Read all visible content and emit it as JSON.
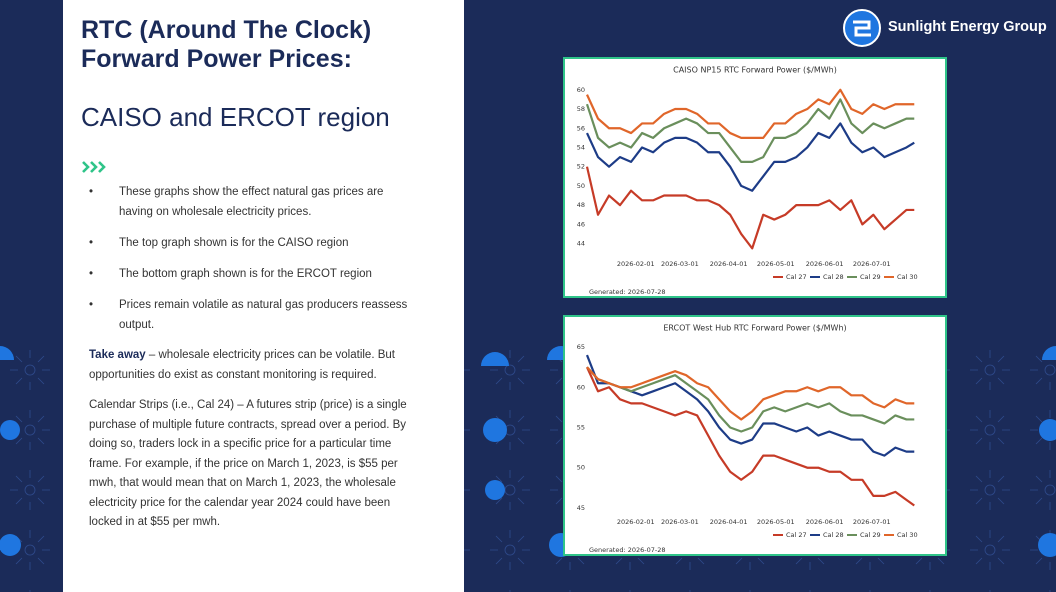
{
  "brand": "Sunlight Energy Group",
  "heading": {
    "title": "RTC (Around The Clock) Forward Power Prices:",
    "subtitle": "CAISO and ERCOT region"
  },
  "bullets": [
    "These graphs show the effect natural gas prices are having on wholesale electricity prices.",
    "The top graph shown is for the CAISO region",
    "The bottom graph shown is for the ERCOT region",
    "Prices remain volatile as natural gas producers reassess output."
  ],
  "take_away": {
    "label": "Take away",
    "text": "– wholesale electricity prices can be volatile. But opportunities do exist as constant monitoring is required."
  },
  "note": "Calendar Strips (i.e., Cal 24) – A futures strip (price) is a single purchase of multiple future contracts, spread over a period. By doing so, traders lock in a specific price for a particular time frame.  For example, if the price on March 1, 2023, is $55 per mwh, that would mean that on March 1, 2023, the wholesale electricity price for the calendar year 2024 could have been locked in at $55 per mwh.",
  "chart_data": [
    {
      "type": "line",
      "title": "CAISO NP15 RTC Forward Power ($/MWh)",
      "footnote": "Generated: 2026-07-28",
      "x": [
        "2026-01-01",
        "2026-01-08",
        "2026-01-15",
        "2026-01-22",
        "2026-01-29",
        "2026-02-05",
        "2026-02-12",
        "2026-02-19",
        "2026-02-26",
        "2026-03-05",
        "2026-03-12",
        "2026-03-19",
        "2026-03-26",
        "2026-04-02",
        "2026-04-09",
        "2026-04-16",
        "2026-04-23",
        "2026-04-30",
        "2026-05-07",
        "2026-05-14",
        "2026-05-21",
        "2026-05-28",
        "2026-06-04",
        "2026-06-11",
        "2026-06-18",
        "2026-06-25",
        "2026-07-02",
        "2026-07-09",
        "2026-07-16",
        "2026-07-23",
        "2026-07-28"
      ],
      "xlim": [
        "2026-01-01",
        "2026-07-31"
      ],
      "xticks": [
        "2026-02-01",
        "2026-03-01",
        "2026-04-01",
        "2026-05-01",
        "2026-06-01",
        "2026-07-01"
      ],
      "ylim": [
        42.5,
        60.5
      ],
      "yticks": [
        44,
        46,
        48,
        50,
        52,
        54,
        56,
        58,
        60
      ],
      "series": [
        {
          "name": "Cal 27",
          "color": "#c63b27",
          "values": [
            52,
            47,
            49,
            48,
            49.5,
            48.5,
            48.5,
            49,
            49,
            49,
            48.5,
            48.5,
            48,
            47,
            45,
            43.5,
            47,
            46.5,
            47,
            48,
            48,
            48,
            48.5,
            47.5,
            48.5,
            46,
            47,
            45.5,
            46.5,
            47.5,
            47.5
          ]
        },
        {
          "name": "Cal 28",
          "color": "#1d3c87",
          "values": [
            55.5,
            53,
            52,
            53,
            52.5,
            54,
            53.5,
            54.5,
            55,
            55,
            54.5,
            53.5,
            53.5,
            52,
            50,
            49.5,
            51,
            52.5,
            52.5,
            53,
            54,
            55.5,
            55,
            56.5,
            54.5,
            53.5,
            54,
            53,
            53.5,
            54,
            54.5
          ]
        },
        {
          "name": "Cal 29",
          "color": "#6a8f5c",
          "values": [
            58.5,
            55,
            54,
            54.5,
            54,
            55.5,
            55,
            56,
            56.5,
            57,
            56.5,
            55.5,
            55.5,
            54,
            52.5,
            52.5,
            53,
            55,
            55,
            55.5,
            56.5,
            58,
            57,
            59,
            56.5,
            55.5,
            56.5,
            56,
            56.5,
            57,
            57
          ]
        },
        {
          "name": "Cal 30",
          "color": "#e0662a",
          "values": [
            59.5,
            57,
            56,
            56,
            55.5,
            56.5,
            56.5,
            57.5,
            58,
            58,
            57.5,
            56.5,
            56.5,
            55.5,
            55,
            55,
            55,
            56.5,
            56.5,
            57.5,
            58,
            59,
            58.5,
            60,
            58,
            57.5,
            58.5,
            58,
            58.5,
            58.5,
            58.5
          ]
        }
      ]
    },
    {
      "type": "line",
      "title": "ERCOT West Hub RTC Forward Power ($/MWh)",
      "footnote": "Generated: 2026-07-28",
      "x": [
        "2026-01-01",
        "2026-01-08",
        "2026-01-15",
        "2026-01-22",
        "2026-01-29",
        "2026-02-05",
        "2026-02-12",
        "2026-02-19",
        "2026-02-26",
        "2026-03-05",
        "2026-03-12",
        "2026-03-19",
        "2026-03-26",
        "2026-04-02",
        "2026-04-09",
        "2026-04-16",
        "2026-04-23",
        "2026-04-30",
        "2026-05-07",
        "2026-05-14",
        "2026-05-21",
        "2026-05-28",
        "2026-06-04",
        "2026-06-11",
        "2026-06-18",
        "2026-06-25",
        "2026-07-02",
        "2026-07-09",
        "2026-07-16",
        "2026-07-23",
        "2026-07-28"
      ],
      "xlim": [
        "2026-01-01",
        "2026-07-31"
      ],
      "xticks": [
        "2026-02-01",
        "2026-03-01",
        "2026-04-01",
        "2026-05-01",
        "2026-06-01",
        "2026-07-01"
      ],
      "ylim": [
        44,
        65.5
      ],
      "yticks": [
        45,
        50,
        55,
        60,
        65
      ],
      "series": [
        {
          "name": "Cal 27",
          "color": "#c63b27",
          "values": [
            62.5,
            59.5,
            60,
            58.5,
            58,
            58,
            57.5,
            57,
            56.5,
            57,
            56.5,
            54,
            51.5,
            49.5,
            48.5,
            49.5,
            51.5,
            51.5,
            51,
            50.5,
            50,
            50,
            49.5,
            49.5,
            48.5,
            48.5,
            46.5,
            46.5,
            47,
            46,
            45.3
          ]
        },
        {
          "name": "Cal 28",
          "color": "#1d3c87",
          "values": [
            64,
            60.5,
            60.5,
            60,
            59.5,
            59,
            59.5,
            60,
            60.5,
            59.5,
            58.5,
            57,
            55,
            53.5,
            53,
            53.5,
            55.5,
            55.5,
            55,
            54.5,
            55,
            54,
            54.5,
            54,
            53.5,
            53.5,
            52,
            51.5,
            52.5,
            52,
            52
          ]
        },
        {
          "name": "Cal 29",
          "color": "#6a8f5c",
          "values": [
            62.5,
            61,
            60.5,
            60,
            59.5,
            60,
            60.5,
            61,
            61.5,
            60.5,
            59.5,
            58.5,
            56.5,
            55,
            54.5,
            55,
            57,
            57.5,
            57,
            57.5,
            58,
            57.5,
            58,
            57,
            56.5,
            56.5,
            56,
            55.5,
            56.5,
            56,
            56
          ]
        },
        {
          "name": "Cal 30",
          "color": "#e0662a",
          "values": [
            62.5,
            61,
            60.5,
            60,
            60,
            60.5,
            61,
            61.5,
            62,
            61.5,
            60.5,
            60,
            58.5,
            57,
            56,
            57,
            58.5,
            59,
            59.5,
            59.5,
            60,
            59.5,
            60,
            60,
            59,
            59,
            58,
            57.5,
            58.5,
            58,
            58
          ]
        }
      ]
    }
  ]
}
